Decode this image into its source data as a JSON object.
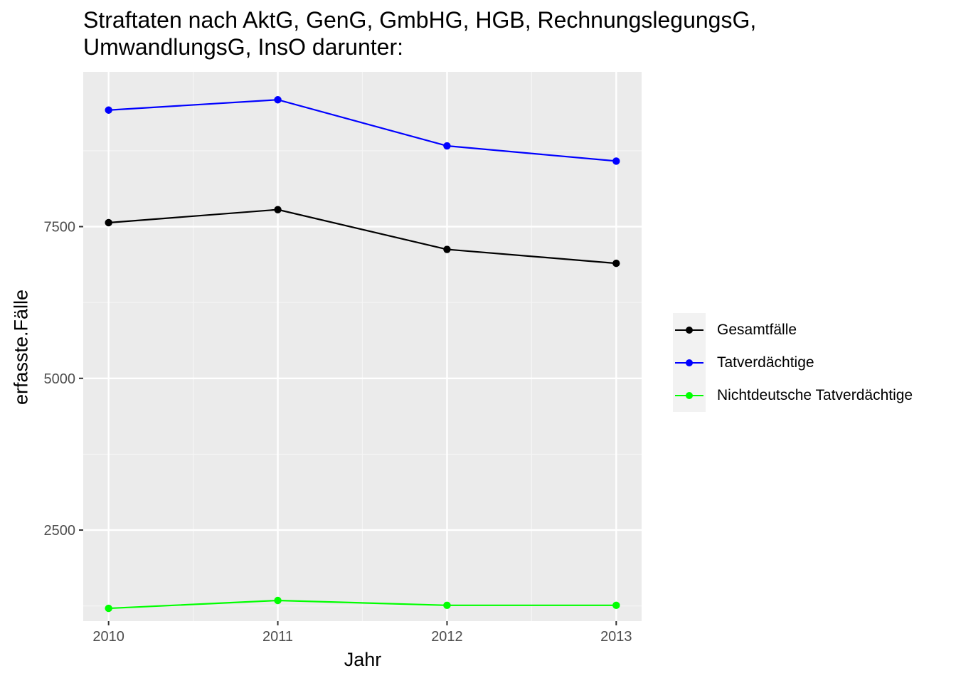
{
  "chart_data": {
    "type": "line",
    "title": "Straftaten nach AktG, GenG, GmbHG, HGB, RechnungslegungsG,",
    "subtitle": "UmwandlungsG, InsO darunter:",
    "xlabel": "Jahr",
    "ylabel": "erfasste.Fälle",
    "x": [
      2010,
      2011,
      2012,
      2013
    ],
    "x_ticks": [
      "2010",
      "2011",
      "2012",
      "2013"
    ],
    "xlim": [
      2009.85,
      2013.15
    ],
    "ylim": [
      1000,
      10050
    ],
    "y_ticks": [
      2500,
      5000,
      7500
    ],
    "y_tick_labels": [
      "2500",
      "5000",
      "7500"
    ],
    "grid": true,
    "legend_position": "right",
    "series": [
      {
        "name": "Gesamtfälle",
        "color": "#000000",
        "values": [
          7565,
          7780,
          7125,
          6895
        ]
      },
      {
        "name": "Tatverdächtige",
        "color": "#0000ff",
        "values": [
          9420,
          9590,
          8830,
          8580
        ]
      },
      {
        "name": "Nichtdeutsche Tatverdächtige",
        "color": "#00ff00",
        "values": [
          1210,
          1340,
          1260,
          1260
        ]
      }
    ]
  }
}
